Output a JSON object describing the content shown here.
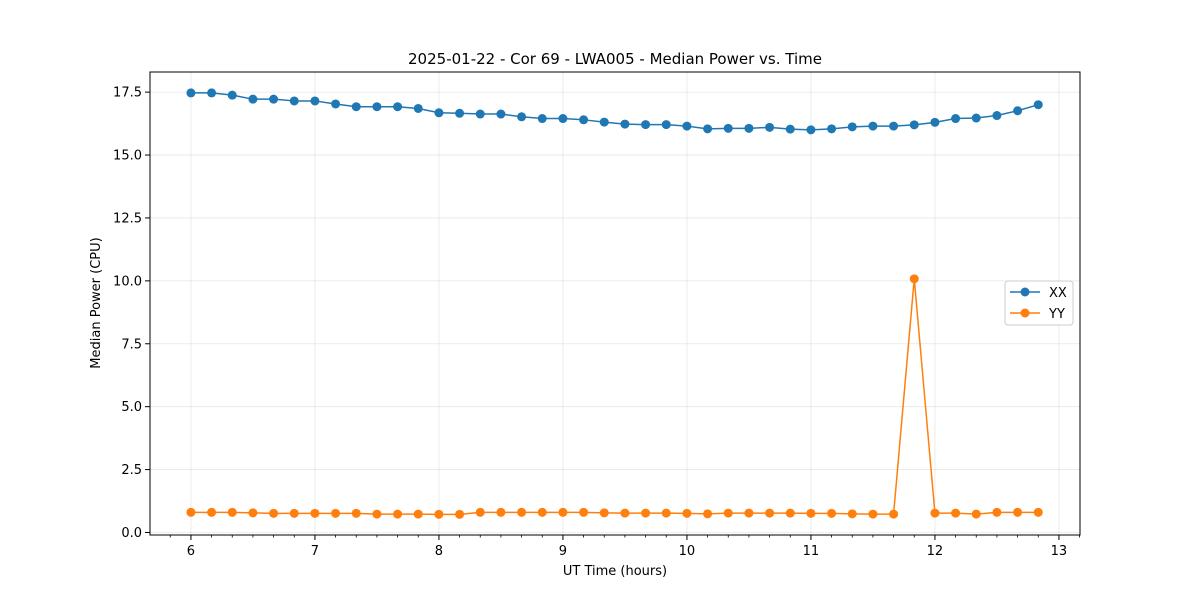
{
  "chart_data": {
    "type": "line",
    "title": "2025-01-22 - Cor 69 - LWA005 - Median Power vs. Time",
    "xlabel": "UT Time (hours)",
    "ylabel": "Median Power (CPU)",
    "xlim": [
      5.67,
      13.17
    ],
    "ylim": [
      -0.1,
      18.3
    ],
    "grid": true,
    "legend_position": "center-right",
    "x_ticks": [
      6,
      7,
      8,
      9,
      10,
      11,
      12,
      13
    ],
    "x_tick_labels": [
      "6",
      "7",
      "8",
      "9",
      "10",
      "11",
      "12",
      "13"
    ],
    "y_ticks": [
      0,
      2.5,
      5,
      7.5,
      10,
      12.5,
      15,
      17.5
    ],
    "y_tick_labels": [
      "0.0",
      "2.5",
      "5.0",
      "7.5",
      "10.0",
      "12.5",
      "15.0",
      "17.5"
    ],
    "x": [
      6.0,
      6.1667,
      6.3333,
      6.5,
      6.6667,
      6.8333,
      7.0,
      7.1667,
      7.3333,
      7.5,
      7.6667,
      7.8333,
      8.0,
      8.1667,
      8.3333,
      8.5,
      8.6667,
      8.8333,
      9.0,
      9.1667,
      9.3333,
      9.5,
      9.6667,
      9.8333,
      10.0,
      10.1667,
      10.3333,
      10.5,
      10.6667,
      10.8333,
      11.0,
      11.1667,
      11.3333,
      11.5,
      11.6667,
      11.8333,
      12.0,
      12.1667,
      12.3333,
      12.5,
      12.6667,
      12.8333
    ],
    "series": [
      {
        "name": "XX",
        "color": "#1f77b4",
        "values": [
          17.47,
          17.47,
          17.38,
          17.22,
          17.22,
          17.15,
          17.15,
          17.03,
          16.92,
          16.92,
          16.92,
          16.85,
          16.68,
          16.66,
          16.63,
          16.63,
          16.52,
          16.45,
          16.45,
          16.4,
          16.31,
          16.23,
          16.21,
          16.21,
          16.15,
          16.04,
          16.06,
          16.06,
          16.1,
          16.03,
          16.0,
          16.04,
          16.12,
          16.15,
          16.15,
          16.2,
          16.3,
          16.45,
          16.47,
          16.57,
          16.76,
          17.0
        ]
      },
      {
        "name": "YY",
        "color": "#ff7f0e",
        "values": [
          0.8,
          0.8,
          0.8,
          0.78,
          0.76,
          0.76,
          0.76,
          0.76,
          0.76,
          0.73,
          0.73,
          0.73,
          0.72,
          0.72,
          0.8,
          0.8,
          0.8,
          0.8,
          0.8,
          0.8,
          0.78,
          0.77,
          0.77,
          0.77,
          0.76,
          0.74,
          0.77,
          0.77,
          0.77,
          0.77,
          0.76,
          0.76,
          0.74,
          0.73,
          0.73,
          10.08,
          0.77,
          0.77,
          0.73,
          0.8,
          0.8,
          0.8
        ]
      }
    ]
  }
}
